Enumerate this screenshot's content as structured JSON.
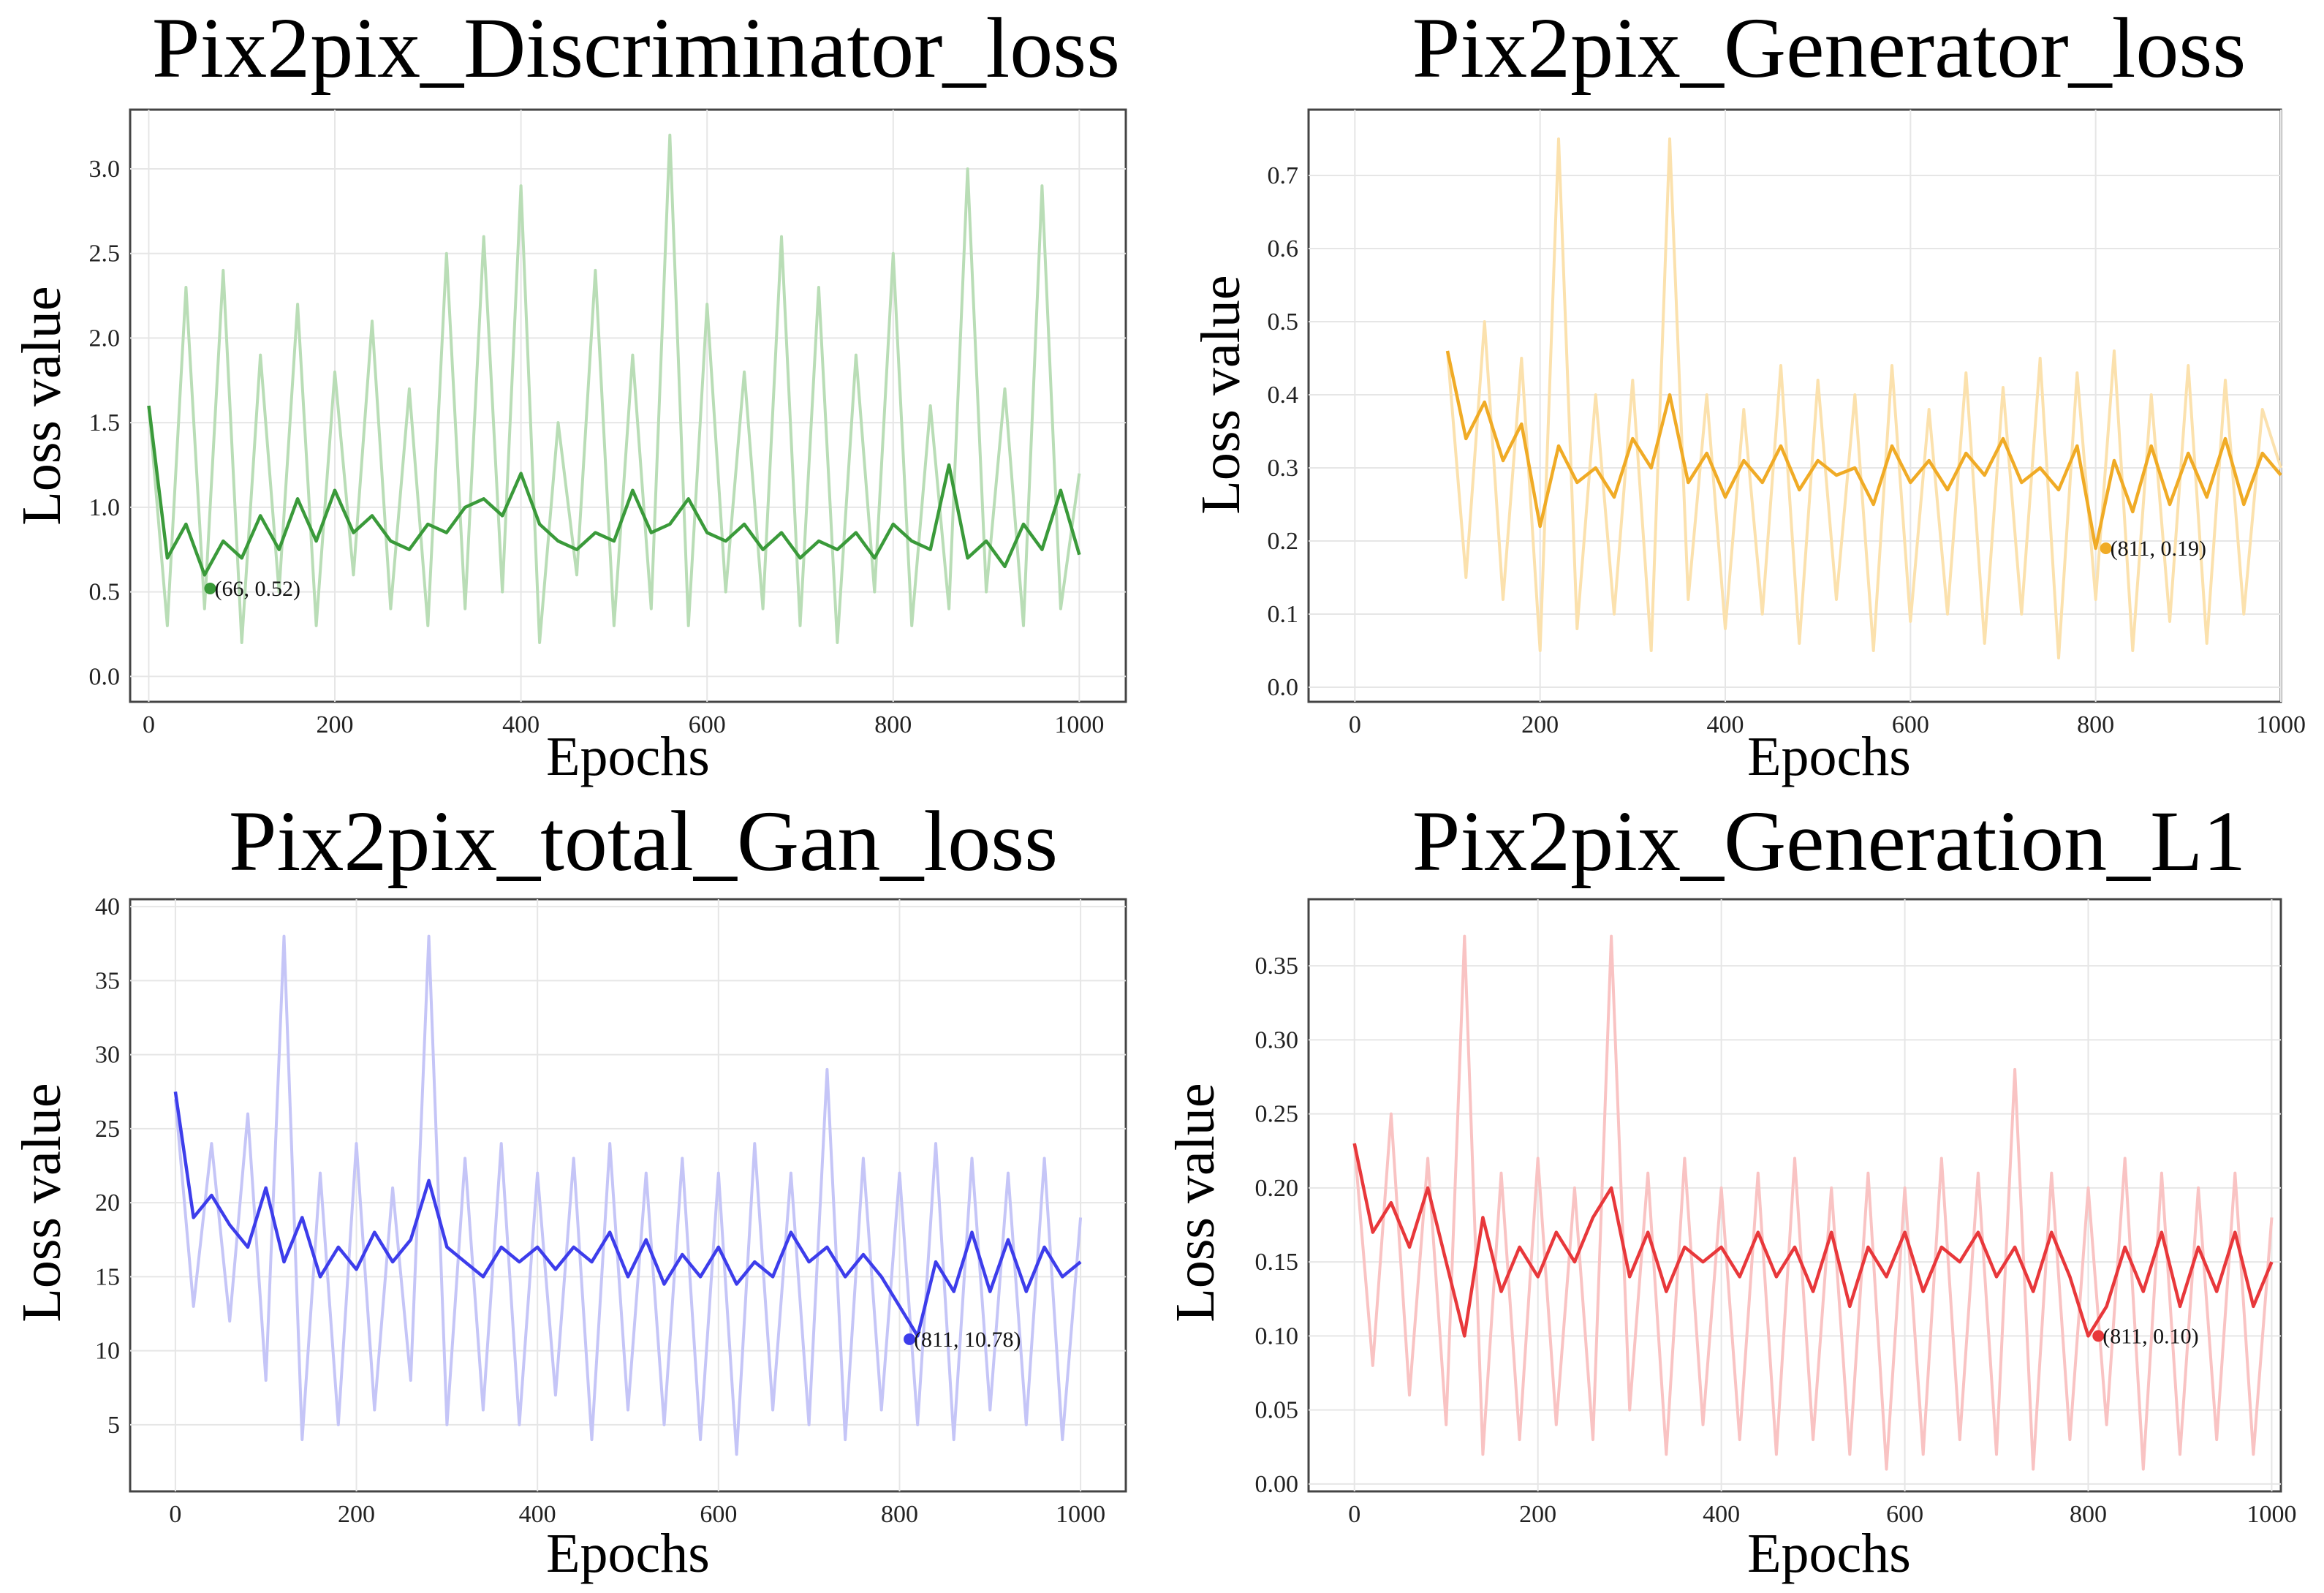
{
  "chart_data": [
    {
      "id": "disc",
      "type": "line",
      "title": "Pix2pix_Discriminator_loss",
      "xlabel": "Epochs",
      "ylabel": "Loss value",
      "xlim": [
        -20,
        1050
      ],
      "ylim": [
        -0.15,
        3.35
      ],
      "xticks": [
        0,
        200,
        400,
        600,
        800,
        1000
      ],
      "xtick_labels": [
        "0",
        "200",
        "400",
        "600",
        "800",
        "1000"
      ],
      "yticks": [
        0.0,
        0.5,
        1.0,
        1.5,
        2.0,
        2.5,
        3.0
      ],
      "ytick_labels": [
        "0.0",
        "0.5",
        "1.0",
        "1.5",
        "2.0",
        "2.5",
        "3.0"
      ],
      "color": "#3a9a3a",
      "raw_color": "#b9ddb6",
      "series": [
        {
          "name": "raw",
          "x": [
            0,
            20,
            40,
            60,
            80,
            100,
            120,
            140,
            160,
            180,
            200,
            220,
            240,
            260,
            280,
            300,
            320,
            340,
            360,
            380,
            400,
            420,
            440,
            460,
            480,
            500,
            520,
            540,
            560,
            580,
            600,
            620,
            640,
            660,
            680,
            700,
            720,
            740,
            760,
            780,
            800,
            820,
            840,
            860,
            880,
            900,
            920,
            940,
            960,
            980,
            1000
          ],
          "values": [
            1.6,
            0.3,
            2.3,
            0.4,
            2.4,
            0.2,
            1.9,
            0.5,
            2.2,
            0.3,
            1.8,
            0.6,
            2.1,
            0.4,
            1.7,
            0.3,
            2.5,
            0.4,
            2.6,
            0.5,
            2.9,
            0.2,
            1.5,
            0.6,
            2.4,
            0.3,
            1.9,
            0.4,
            3.2,
            0.3,
            2.2,
            0.5,
            1.8,
            0.4,
            2.6,
            0.3,
            2.3,
            0.2,
            1.9,
            0.5,
            2.5,
            0.3,
            1.6,
            0.4,
            3.0,
            0.5,
            1.7,
            0.3,
            2.9,
            0.4,
            1.2
          ]
        },
        {
          "name": "smoothed",
          "x": [
            0,
            20,
            40,
            60,
            80,
            100,
            120,
            140,
            160,
            180,
            200,
            220,
            240,
            260,
            280,
            300,
            320,
            340,
            360,
            380,
            400,
            420,
            440,
            460,
            480,
            500,
            520,
            540,
            560,
            580,
            600,
            620,
            640,
            660,
            680,
            700,
            720,
            740,
            760,
            780,
            800,
            820,
            840,
            860,
            880,
            900,
            920,
            940,
            960,
            980,
            1000
          ],
          "values": [
            1.6,
            0.7,
            0.9,
            0.6,
            0.8,
            0.7,
            0.95,
            0.75,
            1.05,
            0.8,
            1.1,
            0.85,
            0.95,
            0.8,
            0.75,
            0.9,
            0.85,
            1.0,
            1.05,
            0.95,
            1.2,
            0.9,
            0.8,
            0.75,
            0.85,
            0.8,
            1.1,
            0.85,
            0.9,
            1.05,
            0.85,
            0.8,
            0.9,
            0.75,
            0.85,
            0.7,
            0.8,
            0.75,
            0.85,
            0.7,
            0.9,
            0.8,
            0.75,
            1.25,
            0.7,
            0.8,
            0.65,
            0.9,
            0.75,
            1.1,
            0.72
          ]
        }
      ],
      "min_point": {
        "x": 66,
        "y": 0.52,
        "label": "(66, 0.52)"
      }
    },
    {
      "id": "gen",
      "type": "line",
      "title": "Pix2pix_Generator_loss",
      "xlabel": "Epochs",
      "ylabel": "Loss value",
      "xlim": [
        -50,
        1000
      ],
      "ylim": [
        -0.02,
        0.79
      ],
      "xticks": [
        0,
        200,
        400,
        600,
        800,
        1000
      ],
      "xtick_labels": [
        "0",
        "200",
        "400",
        "600",
        "800",
        "1000"
      ],
      "yticks": [
        0.0,
        0.1,
        0.2,
        0.3,
        0.4,
        0.5,
        0.6,
        0.7
      ],
      "ytick_labels": [
        "0.0",
        "0.1",
        "0.2",
        "0.3",
        "0.4",
        "0.5",
        "0.6",
        "0.7"
      ],
      "color": "#f0ab26",
      "raw_color": "#fbe1ad",
      "series": [
        {
          "name": "raw",
          "x": [
            100,
            120,
            140,
            160,
            180,
            200,
            220,
            240,
            260,
            280,
            300,
            320,
            340,
            360,
            380,
            400,
            420,
            440,
            460,
            480,
            500,
            520,
            540,
            560,
            580,
            600,
            620,
            640,
            660,
            680,
            700,
            720,
            740,
            760,
            780,
            800,
            820,
            840,
            860,
            880,
            900,
            920,
            940,
            960,
            980,
            1000
          ],
          "values": [
            0.46,
            0.15,
            0.5,
            0.12,
            0.45,
            0.05,
            0.75,
            0.08,
            0.4,
            0.1,
            0.42,
            0.05,
            0.75,
            0.12,
            0.4,
            0.08,
            0.38,
            0.1,
            0.44,
            0.06,
            0.42,
            0.12,
            0.4,
            0.05,
            0.44,
            0.09,
            0.38,
            0.1,
            0.43,
            0.06,
            0.41,
            0.1,
            0.45,
            0.04,
            0.43,
            0.12,
            0.46,
            0.05,
            0.4,
            0.09,
            0.44,
            0.06,
            0.42,
            0.1,
            0.38,
            0.3
          ]
        },
        {
          "name": "smoothed",
          "x": [
            100,
            120,
            140,
            160,
            180,
            200,
            220,
            240,
            260,
            280,
            300,
            320,
            340,
            360,
            380,
            400,
            420,
            440,
            460,
            480,
            500,
            520,
            540,
            560,
            580,
            600,
            620,
            640,
            660,
            680,
            700,
            720,
            740,
            760,
            780,
            800,
            820,
            840,
            860,
            880,
            900,
            920,
            940,
            960,
            980,
            1000
          ],
          "values": [
            0.46,
            0.34,
            0.39,
            0.31,
            0.36,
            0.22,
            0.33,
            0.28,
            0.3,
            0.26,
            0.34,
            0.3,
            0.4,
            0.28,
            0.32,
            0.26,
            0.31,
            0.28,
            0.33,
            0.27,
            0.31,
            0.29,
            0.3,
            0.25,
            0.33,
            0.28,
            0.31,
            0.27,
            0.32,
            0.29,
            0.34,
            0.28,
            0.3,
            0.27,
            0.33,
            0.19,
            0.31,
            0.24,
            0.33,
            0.25,
            0.32,
            0.26,
            0.34,
            0.25,
            0.32,
            0.29
          ]
        }
      ],
      "min_point": {
        "x": 811,
        "y": 0.19,
        "label": "(811, 0.19)"
      }
    },
    {
      "id": "total",
      "type": "line",
      "title": "Pix2pix_total_Gan_loss",
      "xlabel": "Epochs",
      "ylabel": "Loss value",
      "xlim": [
        -50,
        1050
      ],
      "ylim": [
        0.5,
        40.5
      ],
      "xticks": [
        0,
        200,
        400,
        600,
        800,
        1000
      ],
      "xtick_labels": [
        "0",
        "200",
        "400",
        "600",
        "800",
        "1000"
      ],
      "yticks": [
        5,
        10,
        15,
        20,
        25,
        30,
        35,
        40
      ],
      "ytick_labels": [
        "5",
        "10",
        "15",
        "20",
        "25",
        "30",
        "35",
        "40"
      ],
      "color": "#3d3deb",
      "raw_color": "#c5c5f7",
      "series": [
        {
          "name": "raw",
          "x": [
            0,
            20,
            40,
            60,
            80,
            100,
            120,
            140,
            160,
            180,
            200,
            220,
            240,
            260,
            280,
            300,
            320,
            340,
            360,
            380,
            400,
            420,
            440,
            460,
            480,
            500,
            520,
            540,
            560,
            580,
            600,
            620,
            640,
            660,
            680,
            700,
            720,
            740,
            760,
            780,
            800,
            820,
            840,
            860,
            880,
            900,
            920,
            940,
            960,
            980,
            1000
          ],
          "values": [
            27,
            13,
            24,
            12,
            26,
            8,
            38,
            4,
            22,
            5,
            24,
            6,
            21,
            8,
            38,
            5,
            23,
            6,
            24,
            5,
            22,
            7,
            23,
            4,
            24,
            6,
            22,
            5,
            23,
            4,
            22,
            3,
            24,
            6,
            22,
            5,
            29,
            4,
            23,
            6,
            22,
            5,
            24,
            4,
            23,
            6,
            22,
            5,
            23,
            4,
            19
          ]
        },
        {
          "name": "smoothed",
          "x": [
            0,
            20,
            40,
            60,
            80,
            100,
            120,
            140,
            160,
            180,
            200,
            220,
            240,
            260,
            280,
            300,
            320,
            340,
            360,
            380,
            400,
            420,
            440,
            460,
            480,
            500,
            520,
            540,
            560,
            580,
            600,
            620,
            640,
            660,
            680,
            700,
            720,
            740,
            760,
            780,
            800,
            820,
            840,
            860,
            880,
            900,
            920,
            940,
            960,
            980,
            1000
          ],
          "values": [
            27.5,
            19,
            20.5,
            18.5,
            17,
            21,
            16,
            19,
            15,
            17,
            15.5,
            18,
            16,
            17.5,
            21.5,
            17,
            16,
            15,
            17,
            16,
            17,
            15.5,
            17,
            16,
            18,
            15,
            17.5,
            14.5,
            16.5,
            15,
            17,
            14.5,
            16,
            15,
            18,
            16,
            17,
            15,
            16.5,
            15,
            13,
            11,
            16,
            14,
            18,
            14,
            17.5,
            14,
            17,
            15,
            16
          ]
        }
      ],
      "min_point": {
        "x": 811,
        "y": 10.78,
        "label": "(811, 10.78)"
      }
    },
    {
      "id": "l1",
      "type": "line",
      "title": "Pix2pix_Generation_L1",
      "xlabel": "Epochs",
      "ylabel": "Loss value",
      "xlim": [
        -50,
        1010
      ],
      "ylim": [
        -0.005,
        0.395
      ],
      "xticks": [
        0,
        200,
        400,
        600,
        800,
        1000
      ],
      "xtick_labels": [
        "0",
        "200",
        "400",
        "600",
        "800",
        "1000"
      ],
      "yticks": [
        0.0,
        0.05,
        0.1,
        0.15,
        0.2,
        0.25,
        0.3,
        0.35
      ],
      "ytick_labels": [
        "0.00",
        "0.05",
        "0.10",
        "0.15",
        "0.20",
        "0.25",
        "0.30",
        "0.35"
      ],
      "color": "#e8383b",
      "raw_color": "#f9c3c3",
      "series": [
        {
          "name": "raw",
          "x": [
            0,
            20,
            40,
            60,
            80,
            100,
            120,
            140,
            160,
            180,
            200,
            220,
            240,
            260,
            280,
            300,
            320,
            340,
            360,
            380,
            400,
            420,
            440,
            460,
            480,
            500,
            520,
            540,
            560,
            580,
            600,
            620,
            640,
            660,
            680,
            700,
            720,
            740,
            760,
            780,
            800,
            820,
            840,
            860,
            880,
            900,
            920,
            940,
            960,
            980,
            1000
          ],
          "values": [
            0.23,
            0.08,
            0.25,
            0.06,
            0.22,
            0.04,
            0.37,
            0.02,
            0.21,
            0.03,
            0.22,
            0.04,
            0.2,
            0.03,
            0.37,
            0.05,
            0.21,
            0.02,
            0.22,
            0.04,
            0.2,
            0.03,
            0.21,
            0.02,
            0.22,
            0.03,
            0.2,
            0.02,
            0.21,
            0.01,
            0.2,
            0.02,
            0.22,
            0.03,
            0.21,
            0.02,
            0.28,
            0.01,
            0.21,
            0.03,
            0.2,
            0.04,
            0.22,
            0.01,
            0.21,
            0.02,
            0.2,
            0.03,
            0.21,
            0.02,
            0.18
          ]
        },
        {
          "name": "smoothed",
          "x": [
            0,
            20,
            40,
            60,
            80,
            100,
            120,
            140,
            160,
            180,
            200,
            220,
            240,
            260,
            280,
            300,
            320,
            340,
            360,
            380,
            400,
            420,
            440,
            460,
            480,
            500,
            520,
            540,
            560,
            580,
            600,
            620,
            640,
            660,
            680,
            700,
            720,
            740,
            760,
            780,
            800,
            820,
            840,
            860,
            880,
            900,
            920,
            940,
            960,
            980,
            1000
          ],
          "values": [
            0.23,
            0.17,
            0.19,
            0.16,
            0.2,
            0.15,
            0.1,
            0.18,
            0.13,
            0.16,
            0.14,
            0.17,
            0.15,
            0.18,
            0.2,
            0.14,
            0.17,
            0.13,
            0.16,
            0.15,
            0.16,
            0.14,
            0.17,
            0.14,
            0.16,
            0.13,
            0.17,
            0.12,
            0.16,
            0.14,
            0.17,
            0.13,
            0.16,
            0.15,
            0.17,
            0.14,
            0.16,
            0.13,
            0.17,
            0.14,
            0.1,
            0.12,
            0.16,
            0.13,
            0.17,
            0.12,
            0.16,
            0.13,
            0.17,
            0.12,
            0.15
          ]
        }
      ],
      "min_point": {
        "x": 811,
        "y": 0.1,
        "label": "(811, 0.10)"
      }
    }
  ]
}
